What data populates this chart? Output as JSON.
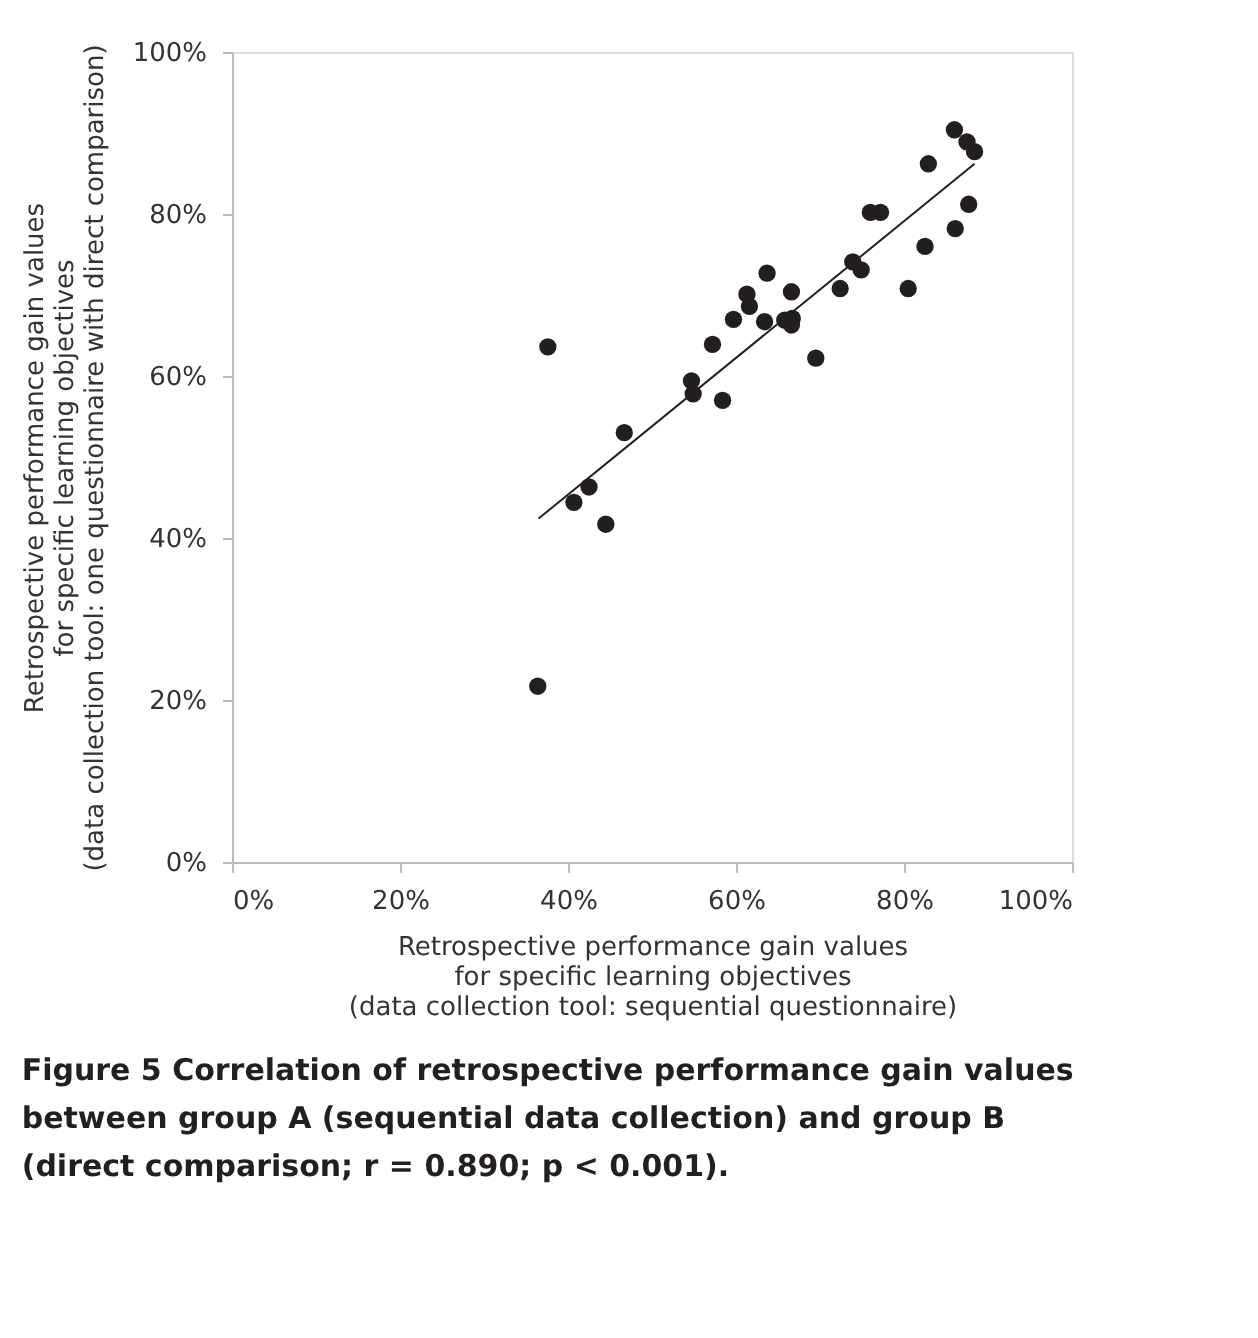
{
  "chart_data": {
    "type": "scatter",
    "title": "Figure 5 Correlation of retrospective performance gain values\nbetween group A (sequential data collection) and group B\n(direct comparison; r = 0.890; p < 0.001).",
    "xlabel": "Retrospective performance gain values\nfor specific learning objectives\n(data collection tool: sequential questionnaire)",
    "ylabel": "Retrospective performance gain values\nfor specific learning objectives\n(data collection tool: one questionnaire with direct comparison)",
    "series": [
      {
        "color": "#231f20",
        "marker": "circle",
        "x": [
          36.4,
          37.6,
          40.7,
          42.5,
          44.5,
          46.7,
          54.7,
          54.9,
          58.4,
          57.2,
          59.7,
          61.3,
          61.6,
          63.4,
          63.7,
          65.8,
          66.7,
          66.6,
          66.6,
          69.5,
          72.4,
          73.9,
          74.9,
          76.0,
          77.2,
          80.5,
          82.5,
          86.1,
          87.7,
          82.9,
          86.0,
          87.5,
          88.4
        ],
        "values": [
          21.7,
          63.6,
          44.4,
          46.3,
          41.7,
          53.0,
          59.4,
          57.8,
          57.0,
          63.9,
          67.0,
          70.1,
          68.6,
          66.7,
          72.7,
          66.9,
          67.1,
          66.3,
          70.4,
          62.2,
          70.8,
          74.1,
          73.1,
          80.2,
          80.2,
          70.8,
          76.0,
          78.2,
          81.2,
          86.2,
          90.4,
          88.9,
          87.7
        ]
      },
      {
        "type": "line",
        "color": "#231f20",
        "marker": "none",
        "x": [
          36.5,
          88.4
        ],
        "values": [
          42.4,
          86.2
        ]
      }
    ],
    "xlim": [
      0,
      100
    ],
    "ylim": [
      0,
      100
    ],
    "xticks": [
      {
        "value": 0,
        "label": "0%"
      },
      {
        "value": 20,
        "label": "20%"
      },
      {
        "value": 40,
        "label": "40%"
      },
      {
        "value": 60,
        "label": "60%"
      },
      {
        "value": 80,
        "label": "80%"
      },
      {
        "value": 100,
        "label": "100%"
      }
    ],
    "yticks": [
      {
        "value": 0,
        "label": "0%"
      },
      {
        "value": 20,
        "label": "20%"
      },
      {
        "value": 40,
        "label": "40%"
      },
      {
        "value": 60,
        "label": "60%"
      },
      {
        "value": 80,
        "label": "80%"
      },
      {
        "value": 100,
        "label": "100%"
      }
    ],
    "grid": false
  }
}
